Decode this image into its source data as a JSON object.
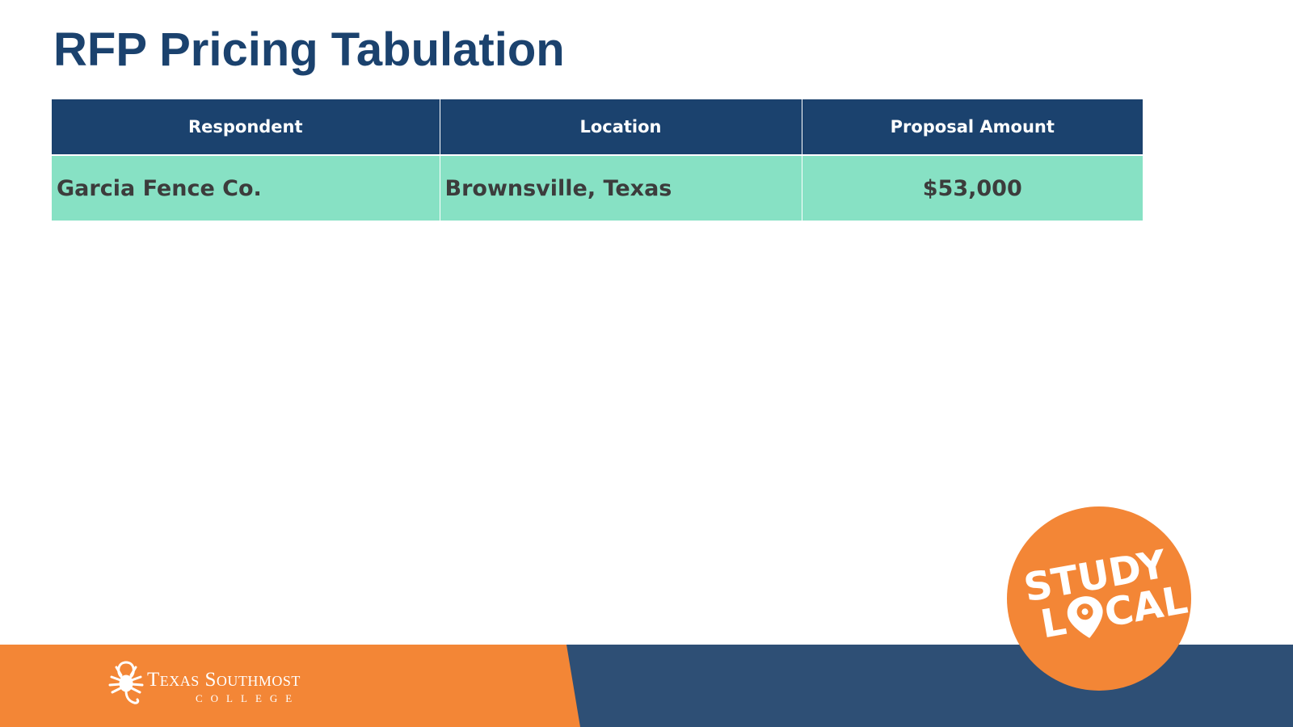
{
  "slide": {
    "title": "RFP Pricing Tabulation"
  },
  "table": {
    "headers": [
      "Respondent",
      "Location",
      "Proposal Amount"
    ],
    "rows": [
      {
        "respondent": "Garcia Fence Co.",
        "location": "Brownsville, Texas",
        "amount": "$53,000"
      }
    ]
  },
  "footer": {
    "logo_name": "Texas Southmost",
    "logo_sub": "COLLEGE",
    "badge_line1": "STUDY",
    "badge_line2_pre": "L",
    "badge_line2_post": "CAL"
  },
  "colors": {
    "title": "#1b426e",
    "header_bg": "#1b426e",
    "row_bg": "#87e1c4",
    "orange": "#f38636",
    "navy": "#2e4f75"
  },
  "icons": {
    "scorpion": "scorpion-icon",
    "pin": "location-pin-icon"
  }
}
